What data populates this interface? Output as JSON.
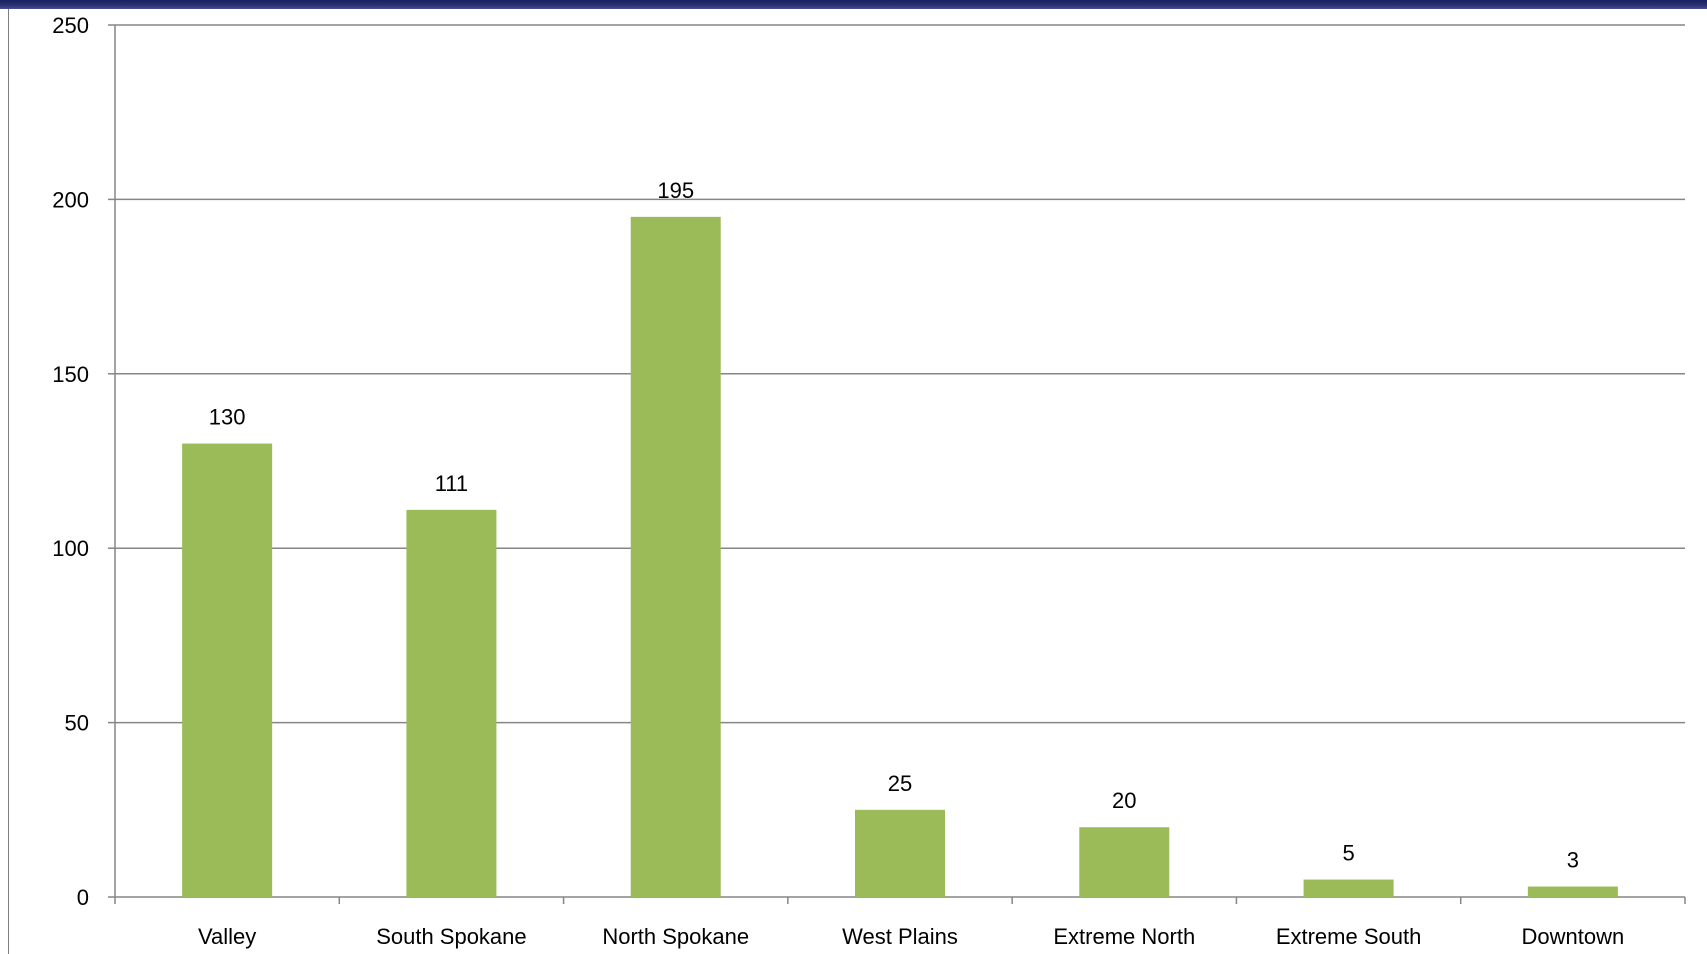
{
  "chart_data": {
    "type": "bar",
    "categories": [
      "Valley",
      "South Spokane",
      "North Spokane",
      "West Plains",
      "Extreme North",
      "Extreme South",
      "Downtown"
    ],
    "values": [
      130,
      111,
      195,
      25,
      20,
      5,
      3
    ],
    "data_labels": [
      "130",
      "111",
      "195",
      "25",
      "20",
      "5",
      "3"
    ],
    "y_ticks": [
      "0",
      "50",
      "100",
      "150",
      "200",
      "250"
    ],
    "y_tick_values": [
      0,
      50,
      100,
      150,
      200,
      250
    ],
    "ylim": [
      0,
      250
    ],
    "title": "",
    "xlabel": "",
    "ylabel": "",
    "grid": true,
    "legend": "none",
    "bar_color": "#9bbb59",
    "grid_color": "#868686",
    "frame_band_color": "#1a1f5c"
  }
}
